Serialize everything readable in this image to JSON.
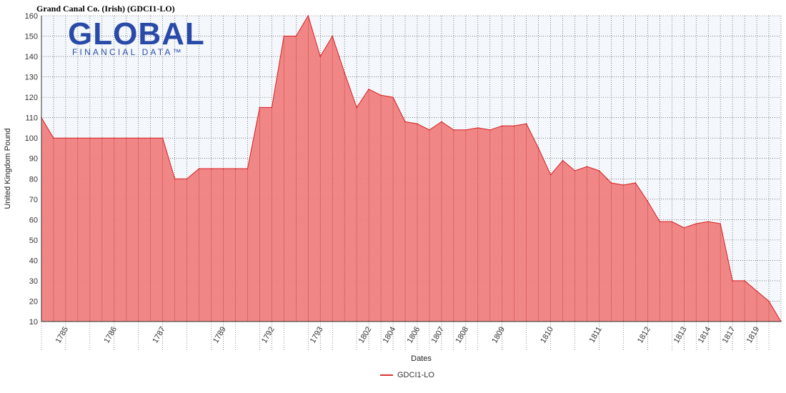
{
  "header": {
    "title": "Grand Canal Co. (Irish) (GDCI1-LO)"
  },
  "logo": {
    "main": "GLOBAL",
    "sub": "FINANCIAL DATA™"
  },
  "legend": {
    "label": "GDCI1-LO",
    "color": "#e03030"
  },
  "colors": {
    "fill": "#f08080",
    "line": "#d62020",
    "plot_bg": "#f4f8fc"
  },
  "chart_data": {
    "type": "area",
    "title": "Grand Canal Co. (Irish) (GDCI1-LO)",
    "xlabel": "Dates",
    "ylabel": "United Kingdom Pound",
    "ylim": [
      10,
      160
    ],
    "yticks": [
      10,
      20,
      30,
      40,
      50,
      60,
      70,
      80,
      90,
      100,
      110,
      120,
      130,
      140,
      150,
      160
    ],
    "xtick_labels": [
      {
        "i": 2,
        "label": "1785"
      },
      {
        "i": 6,
        "label": "1786"
      },
      {
        "i": 10,
        "label": "1787"
      },
      {
        "i": 15,
        "label": "1789"
      },
      {
        "i": 19,
        "label": "1792"
      },
      {
        "i": 23,
        "label": "1793"
      },
      {
        "i": 27,
        "label": "1802"
      },
      {
        "i": 29,
        "label": "1804"
      },
      {
        "i": 31,
        "label": "1806"
      },
      {
        "i": 33,
        "label": "1807"
      },
      {
        "i": 35,
        "label": "1808"
      },
      {
        "i": 38,
        "label": "1809"
      },
      {
        "i": 42,
        "label": "1810"
      },
      {
        "i": 46,
        "label": "1811"
      },
      {
        "i": 50,
        "label": "1812"
      },
      {
        "i": 53,
        "label": "1813"
      },
      {
        "i": 55,
        "label": "1814"
      },
      {
        "i": 57,
        "label": "1817"
      },
      {
        "i": 59,
        "label": "1819"
      }
    ],
    "grid": true,
    "legend_position": "bottom-center",
    "series": [
      {
        "name": "GDCI1-LO",
        "values": [
          110,
          100,
          100,
          100,
          100,
          100,
          100,
          100,
          100,
          100,
          100,
          80,
          80,
          85,
          85,
          85,
          85,
          85,
          115,
          115,
          150,
          150,
          160,
          140,
          150,
          132,
          115,
          124,
          121,
          120,
          108,
          107,
          104,
          108,
          104,
          104,
          105,
          104,
          106,
          106,
          107,
          95,
          82,
          89,
          84,
          86,
          84,
          78,
          77,
          78,
          69,
          59,
          59,
          56,
          58,
          59,
          58,
          30,
          30,
          25,
          20,
          10
        ]
      }
    ]
  }
}
